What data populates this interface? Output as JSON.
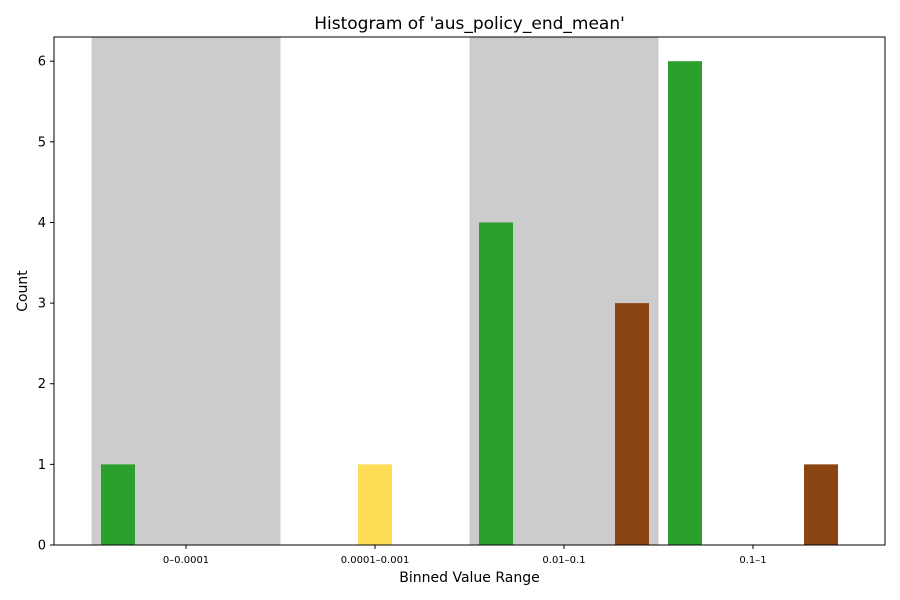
{
  "chart_data": {
    "type": "bar",
    "title": "Histogram of 'aus_policy_end_mean'",
    "xlabel": "Binned Value Range",
    "ylabel": "Count",
    "categories": [
      "0–0.0001",
      "0.0001–0.001",
      "0.01–0.1",
      "0.1–1"
    ],
    "ylim": [
      0,
      6.3
    ],
    "yticks": [
      0,
      1,
      2,
      3,
      4,
      5,
      6
    ],
    "grid": false,
    "legend": "none",
    "shaded_categories": [
      "0–0.0001",
      "0.01–0.1"
    ],
    "shade_color": "#cccccc",
    "series": [
      {
        "color": "#2ca02c",
        "values": [
          1,
          0,
          4,
          6
        ]
      },
      {
        "color": "#ffdd57",
        "values": [
          0,
          1,
          0,
          0
        ]
      },
      {
        "color": "#8b4513",
        "values": [
          0,
          0,
          3,
          1
        ]
      }
    ]
  }
}
